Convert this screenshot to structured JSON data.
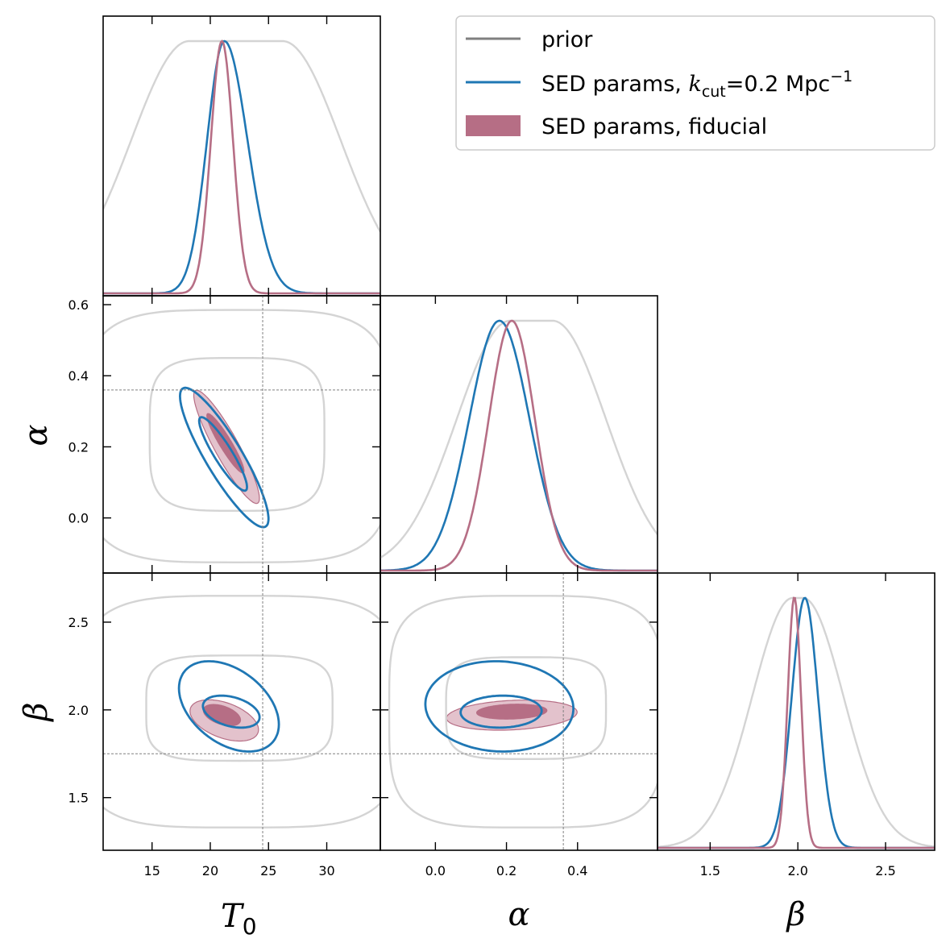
{
  "chart_data": {
    "type": "corner",
    "title": "",
    "parameters": [
      {
        "name": "T0",
        "label": "T",
        "label_sub": "0",
        "range": [
          10.8,
          34.6
        ],
        "ticks": [
          "15",
          "20",
          "25",
          "30"
        ],
        "tick_values": [
          15,
          20,
          25,
          30
        ],
        "truth": 24.5
      },
      {
        "name": "alpha",
        "label": "α",
        "range": [
          -0.155,
          0.625
        ],
        "ticks": [
          "0.0",
          "0.2",
          "0.4"
        ],
        "y_ticks": [
          "0.0",
          "0.2",
          "0.4",
          "0.6"
        ],
        "tick_values": [
          0.0,
          0.2,
          0.4
        ],
        "y_tick_values": [
          0.0,
          0.2,
          0.4,
          0.6
        ],
        "truth": 0.36
      },
      {
        "name": "beta",
        "label": "β",
        "range": [
          1.2,
          2.78
        ],
        "ticks": [
          "1.5",
          "2.0",
          "2.5"
        ],
        "y_ticks": [
          "1.5",
          "2.0",
          "2.5"
        ],
        "tick_values": [
          1.5,
          2.0,
          2.5
        ],
        "truth": 1.75
      }
    ],
    "legend": {
      "position": "top-right",
      "entries": [
        {
          "label": "prior",
          "style": "line",
          "color": "#808080"
        },
        {
          "label_main": "SED params, ",
          "label_k": "k",
          "label_sub": "cut",
          "label_rest": "=0.2 Mpc",
          "label_sup": "−1",
          "style": "line",
          "color": "#1f77b4"
        },
        {
          "label": "SED params, fiducial",
          "style": "patch",
          "color": "#b66e85"
        }
      ]
    },
    "series": [
      {
        "name": "prior",
        "color": "#d4d4d4",
        "marginals": {
          "T0": {
            "mean": 22.2,
            "sigma": 5.0,
            "flat": 4.0
          },
          "alpha": {
            "mean": 0.27,
            "sigma": 0.15,
            "flat": 0.06
          },
          "beta": {
            "mean": 2.0,
            "sigma": 0.23,
            "flat": 0.03
          }
        },
        "contours": {
          "T0-alpha": [
            {
              "level": "68%",
              "center": [
                22.3,
                0.235
              ],
              "half_width": [
                7.5,
                0.215
              ],
              "power": 4
            },
            {
              "level": "95%",
              "center": [
                22.3,
                0.23
              ],
              "half_width": [
                13.2,
                0.355
              ],
              "power": 4
            }
          ],
          "T0-beta": [
            {
              "level": "68%",
              "center": [
                22.5,
                2.01
              ],
              "half_width": [
                8.0,
                0.3
              ],
              "power": 4
            },
            {
              "level": "95%",
              "center": [
                22.5,
                1.99
              ],
              "half_width": [
                13.7,
                0.66
              ],
              "power": 4
            }
          ],
          "alpha-beta": [
            {
              "level": "68%",
              "center": [
                0.255,
                2.01
              ],
              "half_width": [
                0.225,
                0.29
              ],
              "power": 4
            },
            {
              "level": "95%",
              "center": [
                0.255,
                1.99
              ],
              "half_width": [
                0.385,
                0.66
              ],
              "power": 4
            }
          ]
        }
      },
      {
        "name": "SED params, kcut=0.2 Mpc^-1",
        "color": "#1f77b4",
        "marginals": {
          "T0": {
            "mean": 21.2,
            "sigma": 1.6,
            "skew": 0.25
          },
          "alpha": {
            "mean": 0.18,
            "sigma": 0.085,
            "skew": 0.0
          },
          "beta": {
            "mean": 2.04,
            "sigma": 0.075,
            "skew": 0.0
          }
        },
        "contours": {
          "T0-alpha": [
            {
              "level": "68%",
              "center": [
                21.1,
                0.18
              ],
              "sx": 1.35,
              "sy": 0.068,
              "rho": -0.9,
              "k": 1.52
            },
            {
              "level": "95%",
              "center": [
                21.2,
                0.17
              ],
              "sx": 1.55,
              "sy": 0.08,
              "rho": -0.88,
              "k": 2.45
            }
          ],
          "T0-beta": [
            {
              "level": "68%",
              "center": [
                21.8,
                1.99
              ],
              "sx": 1.6,
              "sy": 0.06,
              "rho": -0.35,
              "k": 1.52
            },
            {
              "level": "95%",
              "center": [
                21.6,
                2.02
              ],
              "sx": 1.75,
              "sy": 0.105,
              "rho": -0.4,
              "k": 2.45
            }
          ],
          "alpha-beta": [
            {
              "level": "68%",
              "center": [
                0.185,
                1.99
              ],
              "sx": 0.075,
              "sy": 0.06,
              "rho": 0.05,
              "k": 1.52
            },
            {
              "level": "95%",
              "center": [
                0.18,
                2.02
              ],
              "sx": 0.085,
              "sy": 0.105,
              "rho": -0.05,
              "k": 2.45
            }
          ]
        }
      },
      {
        "name": "SED params, fiducial",
        "color": "#b66e85",
        "fill_inner": "#b66e85",
        "fill_outer": "#e3c2cc",
        "marginals": {
          "T0": {
            "mean": 21.0,
            "sigma": 0.95,
            "skew": 0.0
          },
          "alpha": {
            "mean": 0.215,
            "sigma": 0.065,
            "skew": 0.0
          },
          "beta": {
            "mean": 1.98,
            "sigma": 0.038,
            "skew": 0.0
          }
        },
        "contours": {
          "T0-alpha": [
            {
              "level": "68%",
              "center": [
                21.3,
                0.21
              ],
              "sx": 1.05,
              "sy": 0.055,
              "rho": -0.93,
              "k": 1.52
            },
            {
              "level": "95%",
              "center": [
                21.4,
                0.2
              ],
              "sx": 1.15,
              "sy": 0.065,
              "rho": -0.91,
              "k": 2.45
            }
          ],
          "T0-beta": [
            {
              "level": "68%",
              "center": [
                21.0,
                1.97
              ],
              "sx": 1.05,
              "sy": 0.04,
              "rho": -0.45,
              "k": 1.52
            },
            {
              "level": "95%",
              "center": [
                21.2,
                1.94
              ],
              "sx": 1.2,
              "sy": 0.048,
              "rho": -0.45,
              "k": 2.45
            }
          ],
          "alpha-beta": [
            {
              "level": "68%",
              "center": [
                0.215,
                1.99
              ],
              "sx": 0.065,
              "sy": 0.028,
              "rho": 0.15,
              "k": 1.52
            },
            {
              "level": "95%",
              "center": [
                0.215,
                1.97
              ],
              "sx": 0.075,
              "sy": 0.035,
              "rho": 0.2,
              "k": 2.45
            }
          ]
        }
      }
    ]
  }
}
